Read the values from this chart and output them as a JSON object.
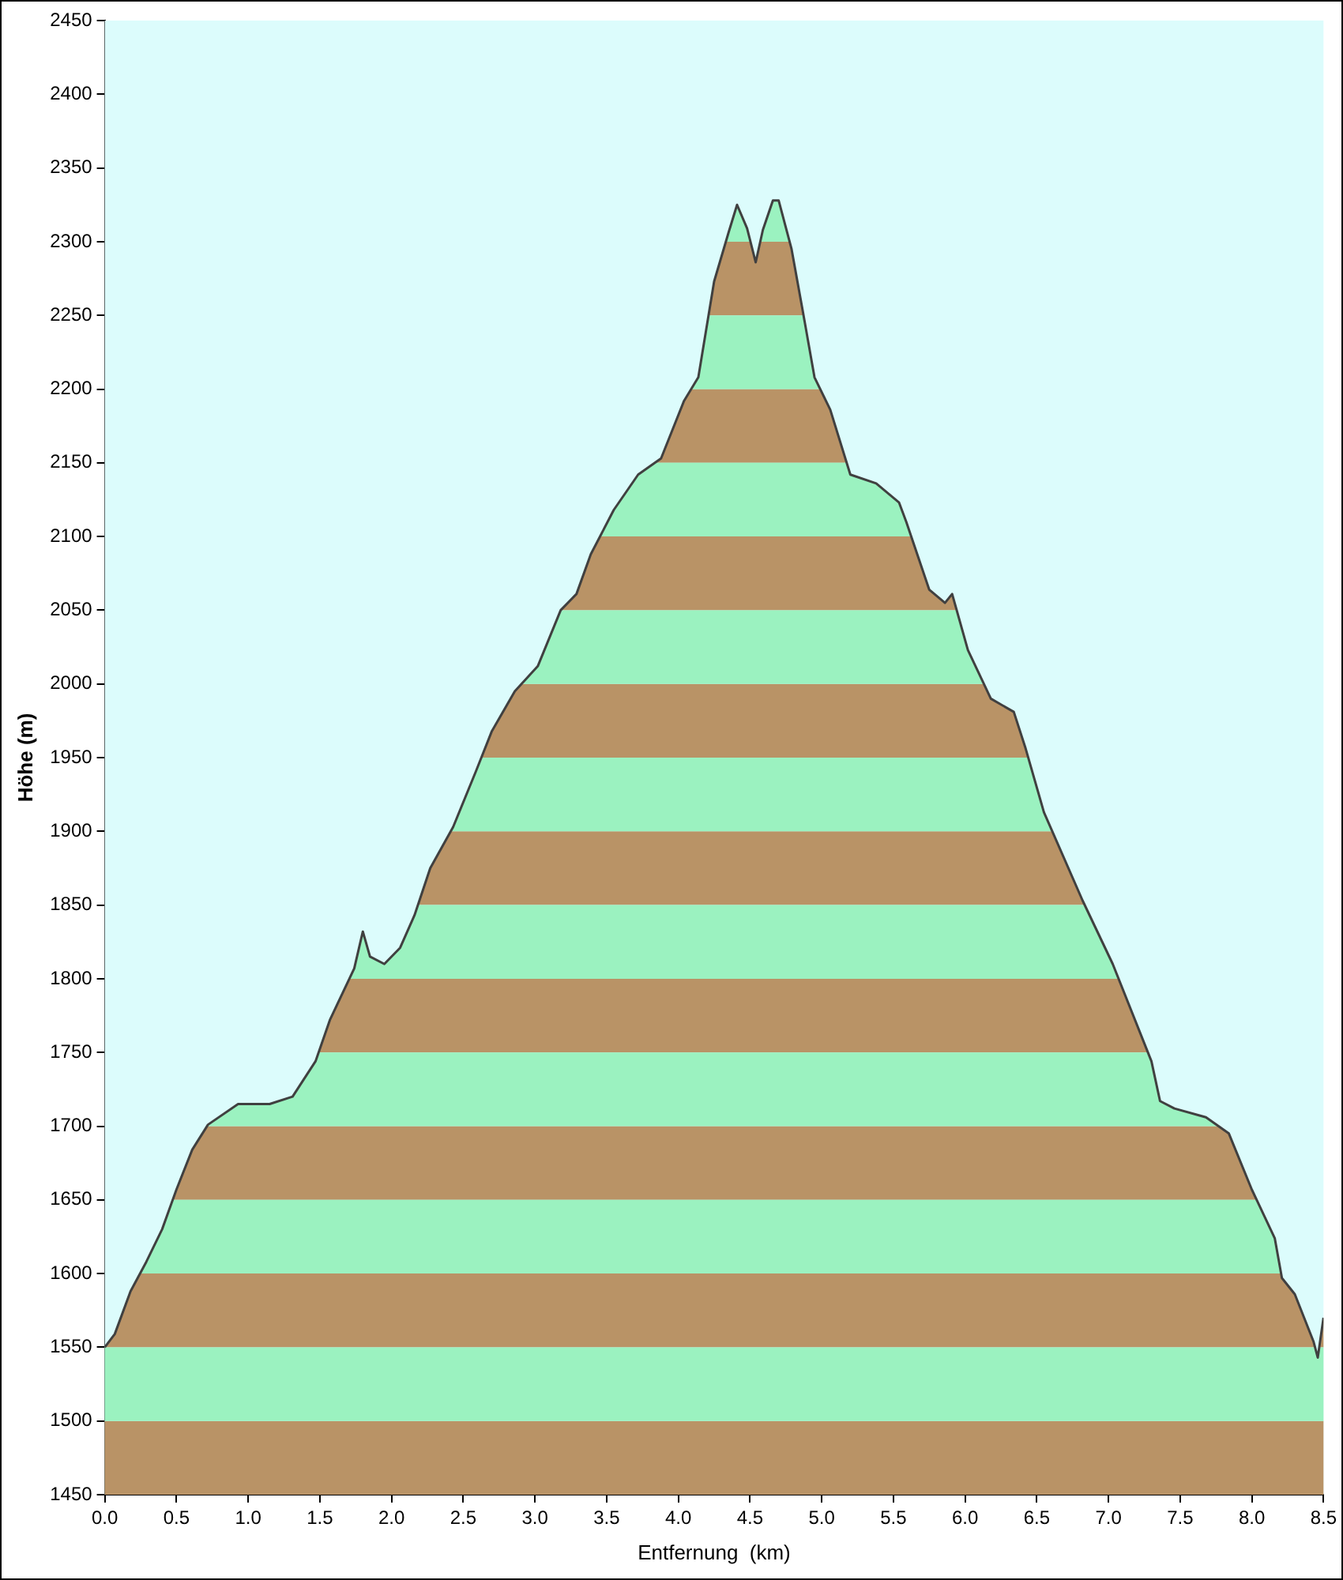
{
  "chart_data": {
    "type": "area",
    "xlabel": "Entfernung  (km)",
    "ylabel": "Höhe (m)",
    "x": [
      0,
      0.07,
      0.18,
      0.29,
      0.4,
      0.5,
      0.61,
      0.72,
      0.93,
      1.15,
      1.31,
      1.47,
      1.57,
      1.74,
      1.8,
      1.85,
      1.95,
      2.06,
      2.16,
      2.27,
      2.43,
      2.59,
      2.7,
      2.86,
      3.02,
      3.18,
      3.29,
      3.39,
      3.55,
      3.72,
      3.88,
      4.04,
      4.14,
      4.25,
      4.35,
      4.41,
      4.48,
      4.54,
      4.59,
      4.66,
      4.7,
      4.79,
      4.87,
      4.95,
      5.06,
      5.2,
      5.38,
      5.54,
      5.59,
      5.75,
      5.86,
      5.91,
      6.02,
      6.18,
      6.34,
      6.42,
      6.55,
      6.82,
      7.03,
      7.3,
      7.36,
      7.46,
      7.68,
      7.84,
      8.0,
      8.16,
      8.21,
      8.3,
      8.43,
      8.46,
      8.5
    ],
    "series": [
      {
        "color": "#9bf2c0",
        "values": [
          1550,
          1559,
          1588,
          1608,
          1630,
          1657,
          1684,
          1701,
          1715,
          1715,
          1720,
          1744,
          1772,
          1807,
          1832,
          1815,
          1810,
          1821,
          1843,
          1875,
          1903,
          1941,
          1968,
          1995,
          2012,
          2050,
          2061,
          2088,
          2118,
          2142,
          2153,
          2192,
          2208,
          2273,
          2306,
          2325,
          2309,
          2286,
          2308,
          2328,
          2328,
          2295,
          2252,
          2208,
          2186,
          2142,
          2136,
          2123,
          2110,
          2064,
          2055,
          2061,
          2023,
          1990,
          1981,
          1957,
          1913,
          1853,
          1810,
          1744,
          1717,
          1712,
          1706,
          1695,
          1657,
          1624,
          1597,
          1586,
          1554,
          1543,
          1570
        ]
      }
    ],
    "bands": [
      {
        "axis": "y",
        "from": 1450,
        "to": 1500,
        "color": "#b99366"
      },
      {
        "axis": "y",
        "from": 1550,
        "to": 1600,
        "color": "#b99366"
      },
      {
        "axis": "y",
        "from": 1650,
        "to": 1700,
        "color": "#b99366"
      },
      {
        "axis": "y",
        "from": 1750,
        "to": 1800,
        "color": "#b99366"
      },
      {
        "axis": "y",
        "from": 1850,
        "to": 1900,
        "color": "#b99366"
      },
      {
        "axis": "y",
        "from": 1950,
        "to": 2000,
        "color": "#b99366"
      },
      {
        "axis": "y",
        "from": 2050,
        "to": 2100,
        "color": "#b99366"
      },
      {
        "axis": "y",
        "from": 2150,
        "to": 2200,
        "color": "#b99366"
      },
      {
        "axis": "y",
        "from": 2250,
        "to": 2300,
        "color": "#b99366"
      }
    ],
    "xlim": [
      0,
      8.5
    ],
    "xticks": [
      {
        "value": 0,
        "label": "0.0"
      },
      {
        "value": 0.5,
        "label": "0.5"
      },
      {
        "value": 1,
        "label": "1.0"
      },
      {
        "value": 1.5,
        "label": "1.5"
      },
      {
        "value": 2,
        "label": "2.0"
      },
      {
        "value": 2.5,
        "label": "2.5"
      },
      {
        "value": 3,
        "label": "3.0"
      },
      {
        "value": 3.5,
        "label": "3.5"
      },
      {
        "value": 4,
        "label": "4.0"
      },
      {
        "value": 4.5,
        "label": "4.5"
      },
      {
        "value": 5,
        "label": "5.0"
      },
      {
        "value": 5.5,
        "label": "5.5"
      },
      {
        "value": 6,
        "label": "6.0"
      },
      {
        "value": 6.5,
        "label": "6.5"
      },
      {
        "value": 7,
        "label": "7.0"
      },
      {
        "value": 7.5,
        "label": "7.5"
      },
      {
        "value": 8,
        "label": "8.0"
      },
      {
        "value": 8.5,
        "label": "8.5"
      }
    ],
    "ylim": [
      1450,
      2450
    ],
    "yticks": [
      1450,
      1500,
      1550,
      1600,
      1650,
      1700,
      1750,
      1800,
      1850,
      1900,
      1950,
      2000,
      2050,
      2100,
      2150,
      2200,
      2250,
      2300,
      2350,
      2400,
      2450
    ],
    "grid": false,
    "legend": false
  }
}
